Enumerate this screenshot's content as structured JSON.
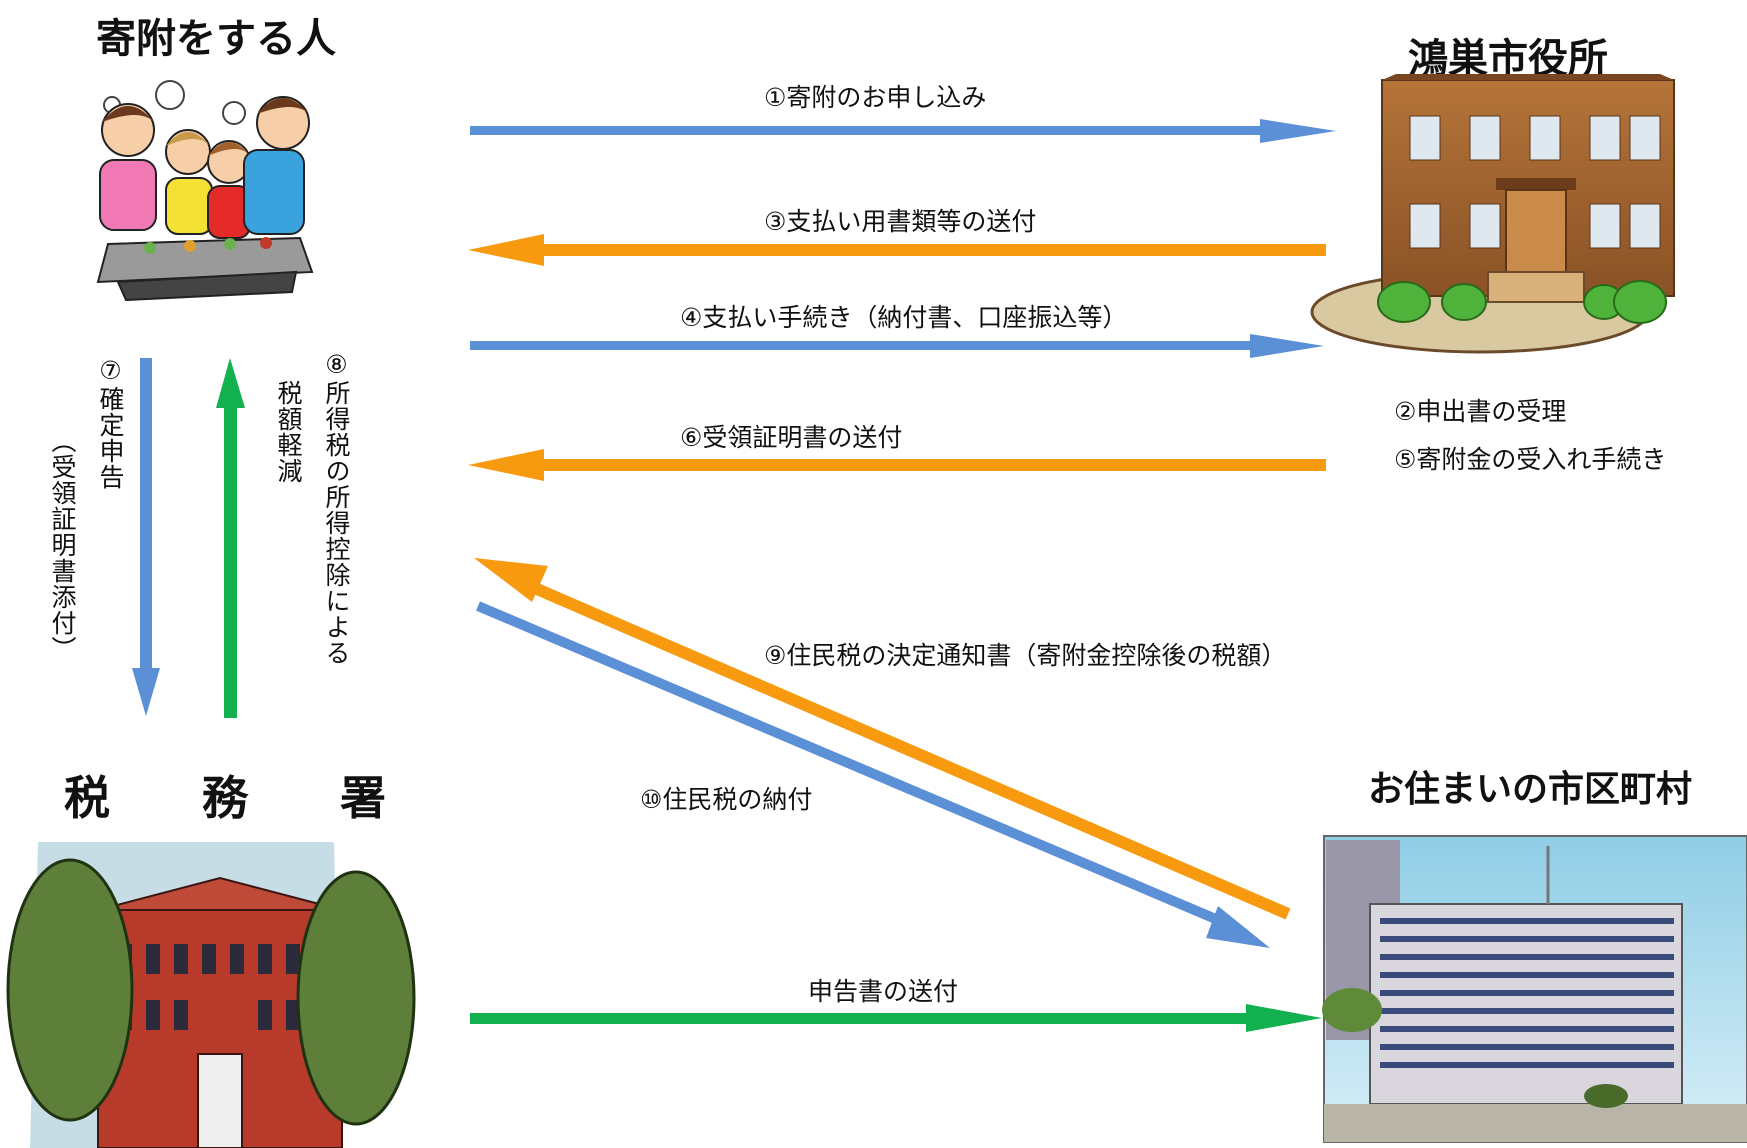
{
  "nodes": {
    "donor": {
      "title": "寄附をする人",
      "icon": "donor-family-bbq-icon"
    },
    "city_office": {
      "title": "鴻巣市役所",
      "icon": "city-hall-building-icon"
    },
    "tax_office": {
      "title": "税　　務　　署",
      "icon": "tax-office-building-icon"
    },
    "municipality": {
      "title": "お住まいの市区町村",
      "icon": "municipal-office-building-icon"
    }
  },
  "arrows": {
    "a1": "①寄附のお申し込み",
    "a3": "③支払い用書類等の送付",
    "a4": "④支払い手続き（納付書、口座振込等）",
    "a6": "⑥受領証明書の送付",
    "a7_main": "⑦確定申告",
    "a7_sub": "（受領証明書添付）",
    "a8_main": "⑧所得税の所得控除による",
    "a8_sub": "税額軽減",
    "a9": "⑨住民税の決定通知書（寄附金控除後の税額）",
    "a10": "⑩住民税の納付",
    "a_report": "申告書の送付"
  },
  "city_steps": [
    "②申出書の受理",
    "⑤寄附金の受入れ手続き"
  ],
  "colors": {
    "blue": "#5b8fd6",
    "orange": "#f79a0f",
    "green": "#12b04e"
  }
}
